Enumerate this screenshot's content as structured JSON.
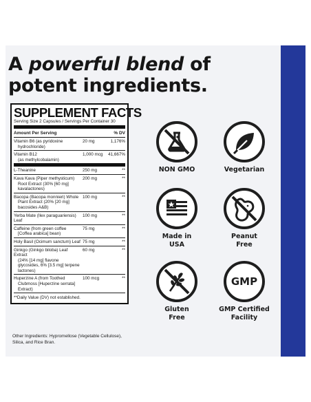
{
  "headline": {
    "line1_start": "A",
    "line1_emphasis": "powerful blend",
    "line1_end": "of",
    "line2": "potent ingredients."
  },
  "supplement_facts": {
    "title": "SUPPLEMENT FACTS",
    "serving": "Serving Size 2 Capsules / Servings Per Container 30",
    "header_left": "Amount Per Serving",
    "header_right": "% DV",
    "rows": [
      {
        "name": "Vitamin B6 (as pyridoxine",
        "name2": "hydrochloride)",
        "amount": "20 mg",
        "dv": "1,176%"
      },
      {
        "name": "Vitamin B12",
        "name2": "(as methylcobalamin)",
        "amount": "1,000 mcg",
        "dv": "41,667%"
      },
      {
        "name": "L-Theanine",
        "name2": "",
        "amount": "250 mg",
        "dv": "**"
      },
      {
        "name": "Kava Kava (Piper methysticum)",
        "name2": "Root Extract (30% [60 mg] kavalactones)",
        "amount": "200 mg",
        "dv": "**"
      },
      {
        "name": "Bacopa (Bacopa monnieri) Whole",
        "name2": "Plant Extract (20% [20 mg] bacosides A&B)",
        "amount": "100 mg",
        "dv": "**"
      },
      {
        "name": "Yerba Mate (Ilex paraguariensis) Leaf",
        "name2": "",
        "amount": "100 mg",
        "dv": "**"
      },
      {
        "name": "Caffeine (from green coffee",
        "name2": "[Coffea arabica] bean)",
        "amount": "75 mg",
        "dv": "**"
      },
      {
        "name": "Holy Basil (Ocimum sanctum) Leaf",
        "name2": "",
        "amount": "75 mg",
        "dv": "**"
      },
      {
        "name": "Ginkgo (Ginkgo biloba) Leaf Extract",
        "name2": "(24% [14 mg] flavone glycosides, 6% [3.5 mg] terpene lactones)",
        "amount": "60 mg",
        "dv": "**"
      },
      {
        "name": "Huperzine A (from Toothed",
        "name2": "Clubmoss [Huperzine serrata] Extract)",
        "amount": "100 mcg",
        "dv": "**"
      }
    ],
    "footnote": "**Daily Value (DV) not established."
  },
  "other_ingredients": "Other Ingredients: Hypromellose (Vegetable Cellulose), Silica, and Rice Bran.",
  "badges": [
    {
      "icon": "no-gmo-flask-icon",
      "label": "NON GMO"
    },
    {
      "icon": "leaf-icon",
      "label": "Vegetarian"
    },
    {
      "icon": "usa-flag-icon",
      "label": "Made in USA"
    },
    {
      "icon": "no-peanut-icon",
      "label": "Peanut Free"
    },
    {
      "icon": "no-gluten-wheat-icon",
      "label": "Gluten Free"
    },
    {
      "icon": "gmp-icon",
      "label": "GMP Certified Facility",
      "icon_text": "GMP"
    }
  ],
  "colors": {
    "accent_blue": "#23389a",
    "card_background": "#f2f3f6",
    "ink": "#1a1a1a"
  }
}
